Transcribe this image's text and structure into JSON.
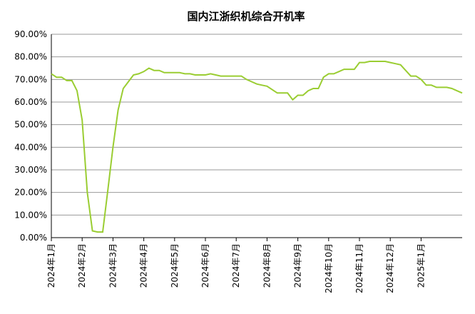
{
  "chart_data": {
    "type": "line",
    "title": "国内江浙织机综合开机率",
    "categories": [
      "2024年1月",
      null,
      null,
      null,
      null,
      null,
      "2024年2月",
      null,
      null,
      null,
      null,
      null,
      "2024年3月",
      null,
      null,
      null,
      null,
      null,
      "2024年4月",
      null,
      null,
      null,
      null,
      null,
      "2024年5月",
      null,
      null,
      null,
      null,
      null,
      "2024年6月",
      null,
      null,
      null,
      null,
      null,
      "2024年7月",
      null,
      null,
      null,
      null,
      null,
      "2024年8月",
      null,
      null,
      null,
      null,
      null,
      "2024年9月",
      null,
      null,
      null,
      null,
      null,
      "2024年10月",
      null,
      null,
      null,
      null,
      null,
      "2024年11月",
      null,
      null,
      null,
      null,
      null,
      "2024年12月",
      null,
      null,
      null,
      null,
      null,
      "2025年1月",
      null,
      null,
      null,
      null,
      null,
      null,
      null,
      null
    ],
    "series": [
      {
        "name": "国内江浙织机综合开机率",
        "color": "#9acd32",
        "values": [
          72.5,
          71,
          71,
          69.5,
          69.5,
          65,
          52,
          20,
          3,
          2.5,
          2.5,
          21,
          40,
          56.5,
          66,
          69,
          72,
          72.5,
          73.5,
          75,
          74,
          74,
          73,
          73,
          73,
          73,
          72.5,
          72.5,
          72,
          72,
          72,
          72.5,
          72,
          71.5,
          71.5,
          71.5,
          71.5,
          71.5,
          70,
          69,
          68,
          67.5,
          67,
          65.5,
          64,
          64,
          64,
          61,
          63,
          63,
          65,
          66,
          66,
          71,
          72.5,
          72.5,
          73.5,
          74.5,
          74.5,
          74.5,
          77.5,
          77.5,
          78,
          78,
          78,
          78,
          77.5,
          77,
          76.5,
          74,
          71.5,
          71.5,
          70,
          67.5,
          67.5,
          66.5,
          66.5,
          66.5,
          66,
          65,
          64
        ]
      }
    ],
    "ylim": [
      0,
      90
    ],
    "yticks": [
      {
        "value": 0,
        "label": "0.00%"
      },
      {
        "value": 10,
        "label": "10.00%"
      },
      {
        "value": 20,
        "label": "20.00%"
      },
      {
        "value": 30,
        "label": "30.00%"
      },
      {
        "value": 40,
        "label": "40.00%"
      },
      {
        "value": 50,
        "label": "50.00%"
      },
      {
        "value": 60,
        "label": "60.00%"
      },
      {
        "value": 70,
        "label": "70.00%"
      },
      {
        "value": 80,
        "label": "80.00%"
      },
      {
        "value": 90,
        "label": "90.00%"
      }
    ],
    "grid": true
  }
}
